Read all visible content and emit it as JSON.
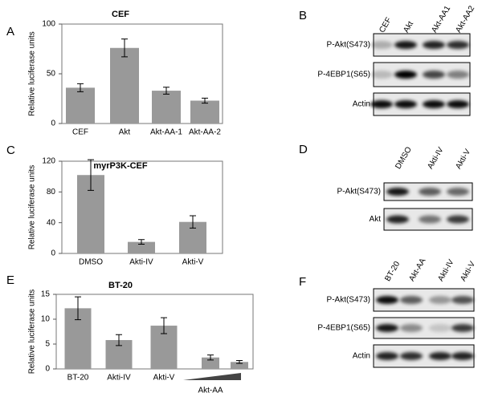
{
  "panels": [
    "A",
    "B",
    "C",
    "D",
    "E",
    "F"
  ],
  "chart_data": [
    {
      "type": "bar",
      "title": "CEF",
      "y_label": "Relative luciferase units",
      "categories": [
        "CEF",
        "Akt",
        "Akt-AA-1",
        "Akt-AA-2"
      ],
      "values": [
        36,
        76,
        33,
        23
      ],
      "errors": [
        4,
        9,
        3.5,
        2.5
      ],
      "color": "#999999",
      "ylim": [
        0,
        100
      ],
      "yticks": [
        0,
        50,
        100
      ]
    },
    {
      "type": "bar",
      "title": "myrP3K-CEF",
      "y_label": "Relative luciferase units",
      "categories": [
        "DMSO",
        "Akti-IV",
        "Akti-V"
      ],
      "values": [
        102,
        15,
        41
      ],
      "errors": [
        20,
        3,
        8
      ],
      "color": "#999999",
      "ylim": [
        0,
        120
      ],
      "yticks": [
        0,
        40,
        80,
        120
      ]
    },
    {
      "type": "bar",
      "title": "BT-20",
      "y_label": "Relative luciferase units",
      "categories": [
        "BT-20",
        "Akti-IV",
        "Akti-V",
        null,
        null
      ],
      "values": [
        12.2,
        5.8,
        8.7,
        2.3,
        1.4
      ],
      "errors": [
        2.3,
        1.1,
        1.6,
        0.5,
        0.3
      ],
      "color": "#999999",
      "ylim": [
        0,
        15
      ],
      "yticks": [
        0,
        5,
        10,
        15
      ],
      "annotation": "Akt-AA"
    }
  ],
  "blots": [
    {
      "lanes": [
        "CEF",
        "Akt",
        "Akt-AA1",
        "Akt-AA2"
      ],
      "rows": [
        "P-Akt(S473)",
        "P-4EBP1(S65)",
        "Actin"
      ]
    },
    {
      "lanes": [
        "DMSO",
        "Akti-IV",
        "Akti-V"
      ],
      "rows": [
        "P-Akt(S473)",
        "Akt"
      ]
    },
    {
      "lanes": [
        "BT-20",
        "Akt-AA",
        "Akti-IV",
        "Akti-V"
      ],
      "rows": [
        "P-Akt(S473)",
        "P-4EBP1(S65)",
        "Actin"
      ]
    }
  ]
}
